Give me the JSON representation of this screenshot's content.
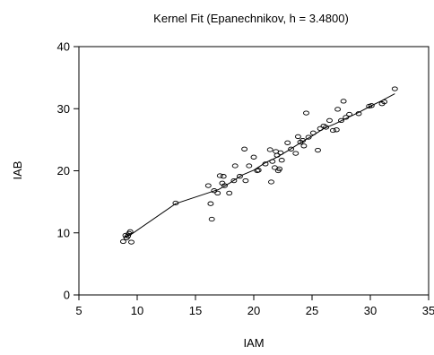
{
  "chart_data": {
    "type": "scatter",
    "title": "Kernel Fit (Epanechnikov, h = 3.4800)",
    "xlabel": "IAM",
    "ylabel": "IAB",
    "xlim": [
      5,
      35
    ],
    "ylim": [
      0,
      40
    ],
    "xticks": [
      5,
      10,
      15,
      20,
      25,
      30,
      35
    ],
    "yticks": [
      0,
      10,
      20,
      30,
      40
    ],
    "grid": false,
    "legend": "none",
    "series": [
      {
        "kind": "points",
        "marker": "open-circle",
        "color": "#000000",
        "points": [
          [
            8.8,
            8.6
          ],
          [
            9.1,
            9.2
          ],
          [
            9.2,
            9.5
          ],
          [
            9.3,
            9.9
          ],
          [
            9.4,
            10.2
          ],
          [
            9.5,
            8.5
          ],
          [
            9.0,
            9.6
          ],
          [
            13.3,
            14.8
          ],
          [
            16.1,
            17.6
          ],
          [
            16.3,
            14.7
          ],
          [
            16.4,
            12.2
          ],
          [
            16.6,
            16.8
          ],
          [
            16.9,
            16.4
          ],
          [
            17.1,
            19.2
          ],
          [
            17.4,
            19.1
          ],
          [
            17.3,
            18.0
          ],
          [
            17.5,
            17.6
          ],
          [
            17.9,
            16.4
          ],
          [
            18.3,
            18.4
          ],
          [
            18.4,
            20.8
          ],
          [
            18.8,
            19.1
          ],
          [
            19.2,
            23.5
          ],
          [
            19.3,
            18.4
          ],
          [
            19.6,
            20.8
          ],
          [
            20.0,
            22.2
          ],
          [
            20.3,
            20.0
          ],
          [
            20.4,
            20.1
          ],
          [
            21.0,
            21.1
          ],
          [
            21.4,
            23.4
          ],
          [
            21.5,
            18.2
          ],
          [
            21.6,
            21.5
          ],
          [
            21.8,
            20.5
          ],
          [
            21.9,
            23.1
          ],
          [
            22.0,
            22.5
          ],
          [
            22.1,
            20.0
          ],
          [
            22.2,
            20.3
          ],
          [
            22.3,
            22.9
          ],
          [
            22.4,
            21.7
          ],
          [
            22.9,
            24.5
          ],
          [
            23.2,
            23.5
          ],
          [
            23.6,
            22.8
          ],
          [
            23.8,
            25.5
          ],
          [
            24.0,
            24.6
          ],
          [
            24.2,
            24.9
          ],
          [
            24.3,
            24.0
          ],
          [
            24.5,
            29.3
          ],
          [
            24.7,
            25.4
          ],
          [
            25.1,
            26.1
          ],
          [
            25.5,
            23.3
          ],
          [
            25.7,
            26.8
          ],
          [
            26.0,
            27.2
          ],
          [
            26.2,
            27.0
          ],
          [
            26.5,
            28.1
          ],
          [
            26.8,
            26.5
          ],
          [
            27.1,
            26.6
          ],
          [
            27.2,
            29.9
          ],
          [
            27.5,
            28.1
          ],
          [
            27.7,
            31.2
          ],
          [
            27.9,
            28.6
          ],
          [
            28.2,
            29.1
          ],
          [
            29.0,
            29.2
          ],
          [
            29.9,
            30.4
          ],
          [
            30.1,
            30.5
          ],
          [
            31.0,
            30.8
          ],
          [
            31.2,
            31.1
          ],
          [
            32.1,
            33.2
          ]
        ]
      },
      {
        "kind": "line",
        "name": "Kernel Fit",
        "color": "#000000",
        "points": [
          [
            8.8,
            9.2
          ],
          [
            9.6,
            9.9
          ],
          [
            13.3,
            14.7
          ],
          [
            16.2,
            16.5
          ],
          [
            17.0,
            17.0
          ],
          [
            18.0,
            18.1
          ],
          [
            19.0,
            19.3
          ],
          [
            20.0,
            20.1
          ],
          [
            21.0,
            21.3
          ],
          [
            22.0,
            22.2
          ],
          [
            23.0,
            23.3
          ],
          [
            24.0,
            24.5
          ],
          [
            25.0,
            25.6
          ],
          [
            26.0,
            26.8
          ],
          [
            27.0,
            27.6
          ],
          [
            28.0,
            28.5
          ],
          [
            29.0,
            29.4
          ],
          [
            30.0,
            30.4
          ],
          [
            31.0,
            31.3
          ],
          [
            32.1,
            32.4
          ]
        ]
      }
    ]
  }
}
